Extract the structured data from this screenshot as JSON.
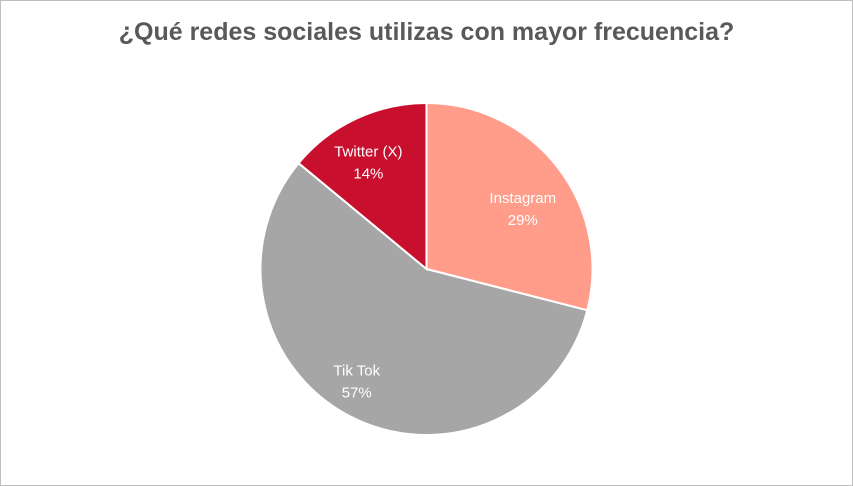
{
  "chart_data": {
    "type": "pie",
    "title": "¿Qué redes sociales utilizas con mayor frecuencia?",
    "slices": [
      {
        "label": "Instagram",
        "value": 29,
        "value_label": "29%",
        "color": "#FF9C8A",
        "text_color": "#ffffff"
      },
      {
        "label": "Tik Tok",
        "value": 57,
        "value_label": "57%",
        "color": "#A6A6A6",
        "text_color": "#ffffff"
      },
      {
        "label": "Twitter (X)",
        "value": 14,
        "value_label": "14%",
        "color": "#C8102E",
        "text_color": "#ffffff"
      }
    ],
    "start_angle": "12 o'clock",
    "direction": "clockwise",
    "legend": "none",
    "data_labels": "inside"
  }
}
